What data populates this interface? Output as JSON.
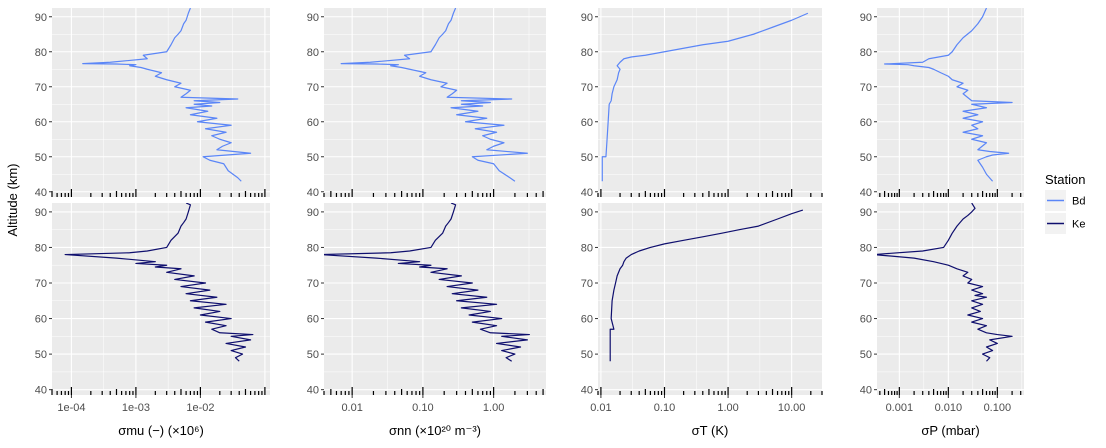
{
  "chart_data": {
    "type": "line",
    "ylabel": "Altitude (km)",
    "ylim": [
      38.5,
      92.5
    ],
    "yticks": [
      "40",
      "50",
      "60",
      "70",
      "80",
      "90"
    ],
    "x_scale": "log",
    "grid": true,
    "legend": {
      "title": "Station",
      "position": "right",
      "entries": [
        {
          "label": "Bd",
          "color": "#5b86f7"
        },
        {
          "label": "Ke",
          "color": "#0f0f6e"
        }
      ]
    },
    "station_rows": [
      {
        "station": "Bd",
        "color": "#5b86f7"
      },
      {
        "station": "Ke",
        "color": "#0f0f6e"
      }
    ],
    "panels": [
      {
        "xlabel": "σmu (−) (×10⁶)",
        "xlim": [
          5e-05,
          0.12
        ],
        "xticks": [
          {
            "value": 0.0001,
            "label": "1e-04"
          },
          {
            "value": 0.001,
            "label": "1e-03"
          },
          {
            "value": 0.01,
            "label": "1e-02"
          }
        ],
        "series": [
          {
            "station": "Bd",
            "x": [
              0.043,
              0.038,
              0.027,
              0.023,
              0.014,
              0.011,
              0.06,
              0.018,
              0.022,
              0.03,
              0.02,
              0.015,
              0.025,
              0.012,
              0.03,
              0.009,
              0.018,
              0.007,
              0.013,
              0.006,
              0.015,
              0.008,
              0.02,
              0.008,
              0.038,
              0.005,
              0.006,
              0.007,
              0.004,
              0.005,
              0.003,
              0.002,
              0.0025,
              0.0015,
              0.0012,
              0.0008,
              0.001,
              0.0005,
              0.00015,
              0.0004,
              0.0015,
              0.0013,
              0.003,
              0.0035,
              0.004,
              0.0045,
              0.005,
              0.0055,
              0.006,
              0.0065,
              0.007
            ],
            "y": [
              43,
              44,
              46,
              48,
              49,
              50,
              51,
              52,
              53,
              54,
              55,
              56,
              57,
              58,
              59,
              60,
              61,
              62,
              63,
              64,
              64.5,
              65,
              65.5,
              66,
              66.5,
              67,
              68,
              69,
              70,
              71,
              72,
              73,
              74,
              75,
              75.5,
              76,
              76.3,
              76.5,
              76.6,
              77,
              78,
              79,
              80,
              82,
              84,
              85,
              86,
              88,
              89,
              91,
              92.5
            ]
          },
          {
            "station": "Ke",
            "x": [
              0.04,
              0.035,
              0.045,
              0.03,
              0.05,
              0.025,
              0.06,
              0.03,
              0.065,
              0.02,
              0.015,
              0.025,
              0.012,
              0.03,
              0.01,
              0.02,
              0.008,
              0.025,
              0.007,
              0.018,
              0.006,
              0.014,
              0.005,
              0.012,
              0.004,
              0.008,
              0.003,
              0.005,
              0.002,
              0.003,
              0.001,
              0.002,
              0.0005,
              8e-05,
              0.0008,
              0.0015,
              0.003,
              0.0035,
              0.0045,
              0.005,
              0.0055,
              0.006,
              0.0065,
              0.007,
              0.006
            ],
            "y": [
              48,
              49,
              50,
              51,
              52,
              53,
              54,
              55,
              55.5,
              56,
              57,
              58,
              59,
              60,
              61,
              62,
              63,
              64,
              65,
              66,
              67,
              68,
              69,
              70,
              71,
              72,
              73,
              74,
              74.5,
              75,
              75.5,
              76,
              77,
              78,
              78.5,
              79,
              80,
              82,
              84,
              86,
              87,
              88,
              90,
              92,
              92.5
            ]
          }
        ]
      },
      {
        "xlabel": "σnn (×10²⁰ m⁻³)",
        "xlim": [
          0.004,
          5.5
        ],
        "xticks": [
          {
            "value": 0.01,
            "label": "0.01"
          },
          {
            "value": 0.1,
            "label": "0.10"
          },
          {
            "value": 1,
            "label": "1.00"
          }
        ],
        "series": [
          {
            "station": "Bd",
            "x": [
              2.0,
              1.7,
              1.2,
              1.0,
              0.6,
              0.5,
              3.0,
              0.8,
              1.0,
              1.4,
              0.9,
              0.7,
              1.1,
              0.55,
              1.4,
              0.4,
              0.8,
              0.3,
              0.6,
              0.25,
              0.7,
              0.35,
              0.9,
              0.35,
              1.8,
              0.22,
              0.26,
              0.3,
              0.18,
              0.22,
              0.13,
              0.09,
              0.11,
              0.065,
              0.05,
              0.035,
              0.045,
              0.022,
              0.007,
              0.018,
              0.065,
              0.055,
              0.13,
              0.15,
              0.17,
              0.19,
              0.21,
              0.23,
              0.25,
              0.27,
              0.29
            ],
            "y": [
              43,
              44,
              46,
              48,
              49,
              50,
              51,
              52,
              53,
              54,
              55,
              56,
              57,
              58,
              59,
              60,
              61,
              62,
              63,
              64,
              64.5,
              65,
              65.5,
              66,
              66.5,
              67,
              68,
              69,
              70,
              71,
              72,
              73,
              74,
              75,
              75.5,
              76,
              76.3,
              76.5,
              76.6,
              77,
              78,
              79,
              80,
              82,
              84,
              85,
              86,
              88,
              89,
              91,
              92.5
            ]
          },
          {
            "station": "Ke",
            "x": [
              1.8,
              1.5,
              2.0,
              1.3,
              2.4,
              1.1,
              3.0,
              1.3,
              3.2,
              0.9,
              0.65,
              1.1,
              0.5,
              1.3,
              0.45,
              0.9,
              0.35,
              1.1,
              0.3,
              0.8,
              0.26,
              0.6,
              0.22,
              0.5,
              0.17,
              0.35,
              0.13,
              0.22,
              0.09,
              0.13,
              0.045,
              0.09,
              0.022,
              0.0035,
              0.035,
              0.065,
              0.13,
              0.15,
              0.19,
              0.21,
              0.23,
              0.25,
              0.27,
              0.29,
              0.25
            ],
            "y": [
              48,
              49,
              50,
              51,
              52,
              53,
              54,
              55,
              55.5,
              56,
              57,
              58,
              59,
              60,
              61,
              62,
              63,
              64,
              65,
              66,
              67,
              68,
              69,
              70,
              71,
              72,
              73,
              74,
              74.5,
              75,
              75.5,
              76,
              77,
              78,
              78.5,
              79,
              80,
              82,
              84,
              86,
              87,
              88,
              90,
              92,
              92.5
            ]
          }
        ]
      },
      {
        "xlabel": "σT (K)",
        "xlim": [
          0.009,
          30
        ],
        "xticks": [
          {
            "value": 0.01,
            "label": "0.01"
          },
          {
            "value": 0.1,
            "label": "0.10"
          },
          {
            "value": 1,
            "label": "1.00"
          },
          {
            "value": 10,
            "label": "10.00"
          }
        ],
        "series": [
          {
            "station": "Bd",
            "x": [
              0.0105,
              0.0105,
              0.012,
              0.0125,
              0.013,
              0.0135,
              0.014,
              0.0145,
              0.015,
              0.016,
              0.018,
              0.019,
              0.02,
              0.018,
              0.02,
              0.023,
              0.03,
              0.05,
              0.1,
              0.2,
              0.4,
              1.0,
              2.5,
              5.0,
              10.0,
              18.0
            ],
            "y": [
              43,
              50,
              50,
              55,
              60,
              65,
              65.5,
              66,
              68,
              70,
              72,
              74,
              75,
              76,
              77,
              78,
              78.5,
              79,
              80,
              81,
              82,
              83,
              85,
              87,
              89,
              91
            ]
          },
          {
            "station": "Ke",
            "x": [
              0.014,
              0.014,
              0.016,
              0.0145,
              0.015,
              0.016,
              0.017,
              0.018,
              0.02,
              0.022,
              0.023,
              0.025,
              0.03,
              0.04,
              0.06,
              0.1,
              0.2,
              0.4,
              0.8,
              1.5,
              3.0,
              6.0,
              10.0,
              15.0
            ],
            "y": [
              48,
              57,
              57,
              60,
              65,
              68,
              70,
              72,
              74,
              75,
              76,
              77,
              78,
              79,
              80,
              81,
              82,
              83,
              84,
              85,
              86,
              88,
              89.5,
              90.5
            ]
          }
        ]
      },
      {
        "xlabel": "σP (mbar)",
        "xlim": [
          0.00035,
          0.35
        ],
        "xticks": [
          {
            "value": 0.001,
            "label": "0.001"
          },
          {
            "value": 0.01,
            "label": "0.010"
          },
          {
            "value": 0.1,
            "label": "0.100"
          }
        ],
        "series": [
          {
            "station": "Bd",
            "x": [
              0.08,
              0.06,
              0.05,
              0.04,
              0.06,
              0.08,
              0.17,
              0.07,
              0.04,
              0.06,
              0.03,
              0.05,
              0.02,
              0.04,
              0.03,
              0.05,
              0.02,
              0.04,
              0.02,
              0.06,
              0.03,
              0.2,
              0.03,
              0.02,
              0.025,
              0.015,
              0.02,
              0.012,
              0.01,
              0.007,
              0.005,
              0.004,
              0.002,
              0.0015,
              0.0005,
              0.003,
              0.004,
              0.01,
              0.012,
              0.015,
              0.02,
              0.03,
              0.04,
              0.05,
              0.06
            ],
            "y": [
              43,
              45,
              47,
              49,
              50,
              50.5,
              51,
              51.5,
              52,
              54,
              55,
              56,
              57,
              58,
              59,
              60,
              61,
              62,
              63,
              64,
              65,
              65.5,
              66,
              68,
              69,
              70,
              71,
              72,
              73,
              74,
              75,
              75.5,
              76,
              76.3,
              76.5,
              77,
              78,
              79,
              80,
              82,
              84,
              86,
              88,
              90,
              92.5
            ]
          },
          {
            "station": "Ke",
            "x": [
              0.06,
              0.07,
              0.05,
              0.08,
              0.06,
              0.1,
              0.07,
              0.2,
              0.1,
              0.06,
              0.04,
              0.06,
              0.03,
              0.05,
              0.025,
              0.045,
              0.03,
              0.05,
              0.03,
              0.06,
              0.035,
              0.05,
              0.03,
              0.05,
              0.025,
              0.03,
              0.02,
              0.025,
              0.015,
              0.01,
              0.005,
              0.002,
              0.0003,
              0.003,
              0.008,
              0.01,
              0.012,
              0.015,
              0.02,
              0.025,
              0.03,
              0.035,
              0.03
            ],
            "y": [
              48,
              49,
              50,
              51,
              52,
              53,
              54,
              55,
              55.5,
              56,
              57,
              58,
              59,
              60,
              61,
              62,
              63,
              64,
              65,
              66,
              66.5,
              67,
              68,
              69,
              70,
              71,
              72,
              73,
              74,
              75,
              76,
              77,
              78,
              79,
              80,
              82,
              84,
              86,
              88,
              89,
              90,
              91,
              92.5
            ]
          }
        ]
      }
    ]
  }
}
